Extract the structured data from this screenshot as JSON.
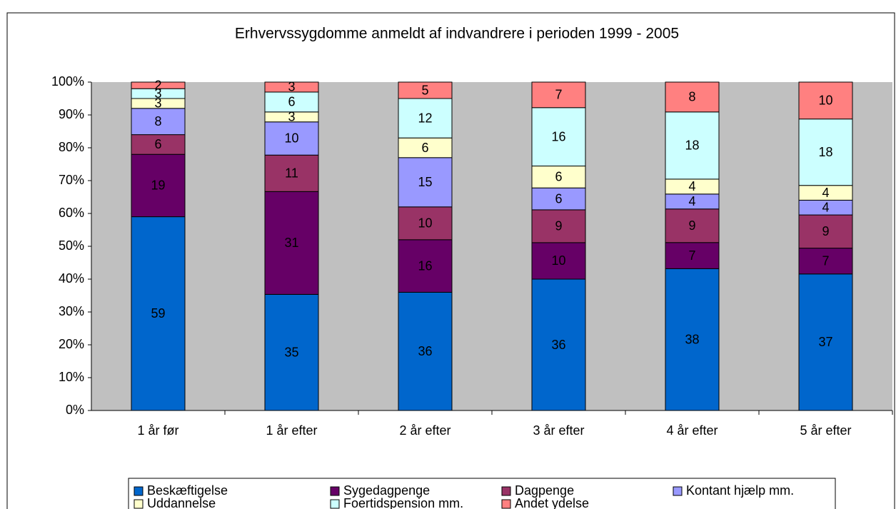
{
  "chart_data": {
    "type": "bar",
    "stacked": "percent",
    "title": "Erhvervssygdomme anmeldt af indvandrere i perioden  1999 - 2005",
    "categories": [
      "1 år før",
      "1 år efter",
      "2 år efter",
      "3 år efter",
      "4 år efter",
      "5 år efter"
    ],
    "series": [
      {
        "name": "Beskæftigelse",
        "color": "#0066cc",
        "values": [
          59,
          35,
          36,
          36,
          38,
          37
        ]
      },
      {
        "name": "Sygedagpenge",
        "color": "#660066",
        "values": [
          19,
          31,
          16,
          10,
          7,
          7
        ]
      },
      {
        "name": "Dagpenge",
        "color": "#993366",
        "values": [
          6,
          11,
          10,
          9,
          9,
          9
        ]
      },
      {
        "name": "Kontant hjælp mm.",
        "color": "#9999ff",
        "values": [
          8,
          10,
          15,
          6,
          4,
          4
        ]
      },
      {
        "name": "Uddannelse",
        "color": "#ffffcc",
        "values": [
          3,
          3,
          6,
          6,
          4,
          4
        ]
      },
      {
        "name": "Foertidspension mm.",
        "color": "#ccffff",
        "values": [
          3,
          6,
          12,
          16,
          18,
          18
        ]
      },
      {
        "name": "Andet ydelse",
        "color": "#ff8080",
        "values": [
          2,
          3,
          5,
          7,
          8,
          10
        ]
      }
    ],
    "ylim": [
      0,
      100
    ],
    "yticks": [
      {
        "value": 0,
        "label": "0%"
      },
      {
        "value": 10,
        "label": "10%"
      },
      {
        "value": 20,
        "label": "20%"
      },
      {
        "value": 30,
        "label": "30%"
      },
      {
        "value": 40,
        "label": "40%"
      },
      {
        "value": 50,
        "label": "50%"
      },
      {
        "value": 60,
        "label": "60%"
      },
      {
        "value": 70,
        "label": "70%"
      },
      {
        "value": 80,
        "label": "80%"
      },
      {
        "value": 90,
        "label": "90%"
      },
      {
        "value": 100,
        "label": "100%"
      }
    ],
    "grid": false,
    "legend": "bottom"
  }
}
